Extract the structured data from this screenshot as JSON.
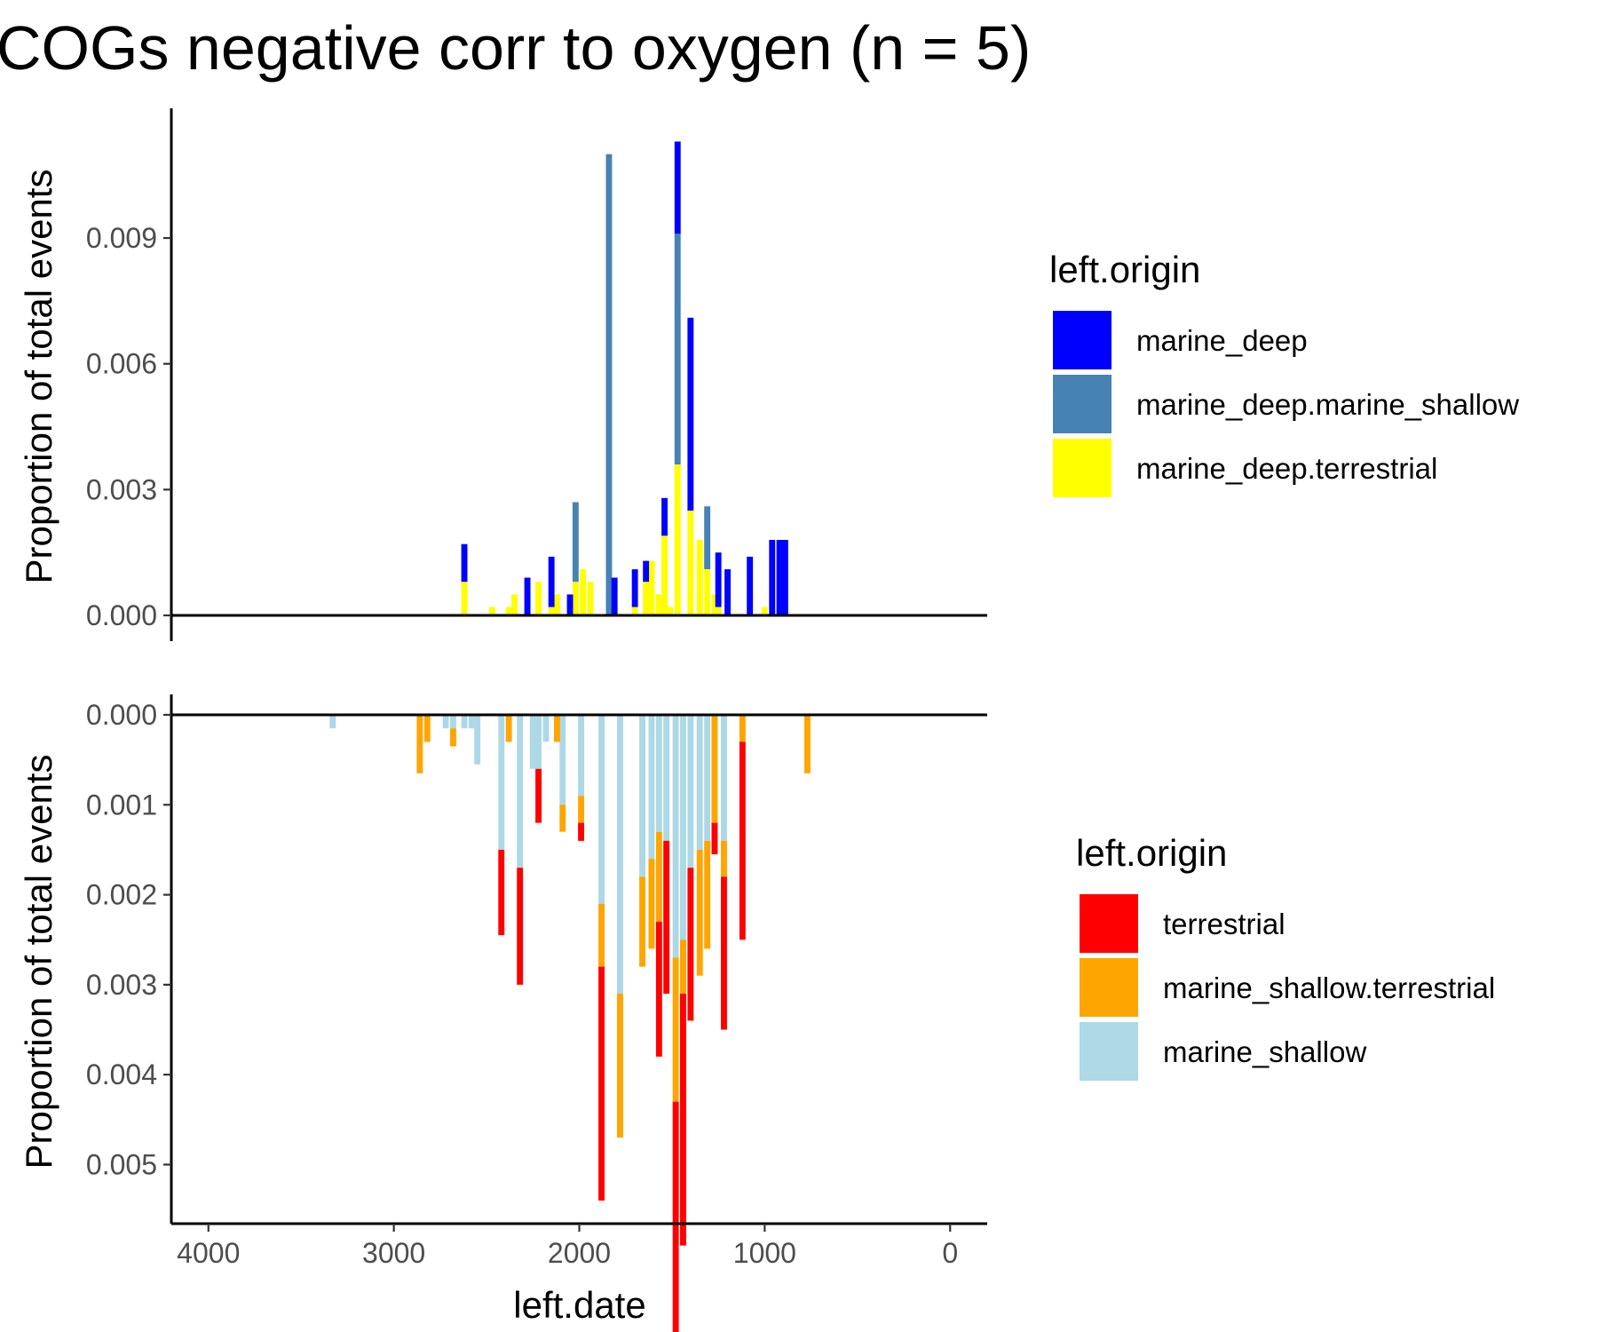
{
  "chart_data": {
    "type": "bar",
    "title": "COGs negative corr to oxygen (n = 5)",
    "xlabel": "left.date",
    "x_reversed": true,
    "xlim": [
      4200,
      -200
    ],
    "xticks": [
      4000,
      3000,
      2000,
      1000,
      0
    ],
    "bin_width": 33,
    "panels": [
      {
        "id": "top",
        "ylabel": "Proportion of total events",
        "ylim": [
          0,
          0.0115
        ],
        "yticks": [
          "0.000",
          "0.003",
          "0.006",
          "0.009"
        ],
        "ytick_values": [
          0,
          0.003,
          0.006,
          0.009
        ],
        "direction": "up",
        "legend_title": "left.origin",
        "series": [
          {
            "name": "marine_deep.terrestrial",
            "color": "#FFFF00",
            "x": [
              2620,
              2470,
              2380,
              2350,
              2220,
              2150,
              2120,
              2020,
              1980,
              1940,
              1700,
              1640,
              1610,
              1570,
              1540,
              1510,
              1470,
              1400,
              1350,
              1310,
              1270,
              1250,
              1000
            ],
            "values": [
              0.0008,
              0.0002,
              0.0002,
              0.0005,
              0.0008,
              0.0002,
              0.0005,
              0.0008,
              0.0011,
              0.0008,
              0.0002,
              0.0008,
              0.0013,
              0.0005,
              0.0019,
              0.0002,
              0.0036,
              0.0025,
              0.0018,
              0.0011,
              0.0005,
              0.0002,
              0.0002
            ]
          },
          {
            "name": "marine_deep.marine_shallow",
            "color": "#4682B4",
            "x": [
              2020,
              1840,
              1470,
              1310
            ],
            "values": [
              0.0019,
              0.011,
              0.0055,
              0.0015
            ]
          },
          {
            "name": "marine_deep",
            "color": "#0000FF",
            "x": [
              2620,
              2280,
              2150,
              2050,
              1810,
              1700,
              1640,
              1540,
              1470,
              1400,
              1250,
              1200,
              1080,
              960,
              920,
              890
            ],
            "values": [
              0.0009,
              0.0009,
              0.0012,
              0.0005,
              0.0009,
              0.0009,
              0.0005,
              0.0009,
              0.0022,
              0.0046,
              0.0013,
              0.0011,
              0.0014,
              0.0018,
              0.0018,
              0.0018
            ]
          }
        ]
      },
      {
        "id": "bottom",
        "ylabel": "Proportion of total events",
        "ylim": [
          0,
          0.0054
        ],
        "yticks": [
          "0.000",
          "0.001",
          "0.002",
          "0.003",
          "0.004",
          "0.005"
        ],
        "ytick_values": [
          0,
          0.001,
          0.002,
          0.003,
          0.004,
          0.005
        ],
        "direction": "down",
        "legend_title": "left.origin",
        "series": [
          {
            "name": "marine_shallow",
            "color": "#ADD8E6",
            "x": [
              3330,
              2720,
              2680,
              2620,
              2580,
              2550,
              2420,
              2320,
              2250,
              2220,
              2180,
              2090,
              1990,
              1880,
              1780,
              1660,
              1610,
              1570,
              1530,
              1480,
              1440,
              1400,
              1350,
              1310,
              1220
            ],
            "values": [
              0.00015,
              0.00015,
              0.00015,
              0.00015,
              0.00015,
              0.00055,
              0.0015,
              0.0017,
              0.0006,
              0.0006,
              0.0003,
              0.001,
              0.0009,
              0.0021,
              0.0031,
              0.0018,
              0.0016,
              0.0013,
              0.0014,
              0.0027,
              0.0025,
              0.0017,
              0.0015,
              0.0014,
              0.0014
            ]
          },
          {
            "name": "marine_shallow.terrestrial",
            "color": "#FFA500",
            "x": [
              2860,
              2820,
              2680,
              2380,
              2120,
              2090,
              1990,
              1880,
              1780,
              1660,
              1610,
              1570,
              1480,
              1440,
              1350,
              1310,
              1270,
              1220,
              1120,
              770
            ],
            "values": [
              0.00065,
              0.0003,
              0.0002,
              0.0003,
              0.0003,
              0.0003,
              0.0003,
              0.0007,
              0.0016,
              0.001,
              0.001,
              0.001,
              0.0016,
              0.0006,
              0.0014,
              0.0012,
              0.0012,
              0.0004,
              0.0003,
              0.00065
            ]
          },
          {
            "name": "terrestrial",
            "color": "#FF0000",
            "x": [
              2420,
              2320,
              2220,
              1990,
              1880,
              1570,
              1530,
              1480,
              1440,
              1400,
              1270,
              1220,
              1120
            ],
            "values": [
              0.00095,
              0.0013,
              0.0006,
              0.0002,
              0.0026,
              0.0015,
              0.0017,
              0.0031,
              0.0028,
              0.0017,
              0.00035,
              0.0017,
              0.0022
            ]
          }
        ]
      }
    ]
  }
}
